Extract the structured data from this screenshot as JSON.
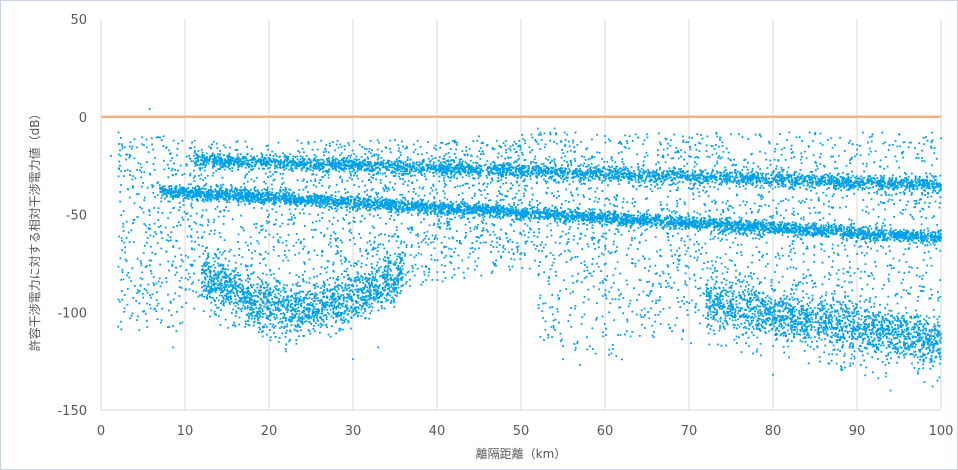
{
  "chart_data": {
    "type": "scatter",
    "xlabel": "離隔距離（km）",
    "ylabel": "許容干渉電力に対する相対干渉電力値（dB）",
    "xlim": [
      0,
      100
    ],
    "ylim": [
      -150,
      50
    ],
    "x_ticks": [
      0,
      10,
      20,
      30,
      40,
      50,
      60,
      70,
      80,
      90,
      100
    ],
    "y_ticks": [
      50,
      0,
      -50,
      -100,
      -150
    ],
    "grid": "vertical",
    "reference_line": {
      "y": 0,
      "color": "#f4b183"
    },
    "series": [
      {
        "color": "#00a0e9",
        "description_points_sampled": [
          [
            5.8,
            4
          ],
          [
            1.2,
            -20
          ],
          [
            2.1,
            -8
          ],
          [
            3.5,
            -13
          ],
          [
            4.3,
            -104
          ],
          [
            8.6,
            -118
          ],
          [
            7,
            -35
          ],
          [
            10,
            -38
          ],
          [
            20,
            -43
          ],
          [
            30,
            -47
          ],
          [
            40,
            -50
          ],
          [
            50,
            -53
          ],
          [
            60,
            -55
          ],
          [
            70,
            -57
          ],
          [
            80,
            -59
          ],
          [
            90,
            -61
          ],
          [
            100,
            -62
          ],
          [
            12,
            -22
          ],
          [
            20,
            -24
          ],
          [
            30,
            -25
          ],
          [
            40,
            -27
          ],
          [
            50,
            -29
          ],
          [
            60,
            -30
          ],
          [
            70,
            -32
          ],
          [
            80,
            -33
          ],
          [
            90,
            -34
          ],
          [
            100,
            -35
          ],
          [
            22,
            -120
          ],
          [
            30,
            -124
          ],
          [
            33,
            -118
          ],
          [
            55,
            -124
          ],
          [
            57,
            -127
          ],
          [
            80,
            -132
          ],
          [
            94,
            -140
          ],
          [
            99,
            -138
          ],
          [
            35,
            -12
          ],
          [
            45,
            -10
          ],
          [
            52,
            -6
          ],
          [
            54,
            -6
          ],
          [
            65,
            -9
          ],
          [
            75,
            -9
          ],
          [
            85,
            -9
          ],
          [
            95,
            -9
          ],
          [
            100,
            -11
          ]
        ]
      }
    ]
  }
}
